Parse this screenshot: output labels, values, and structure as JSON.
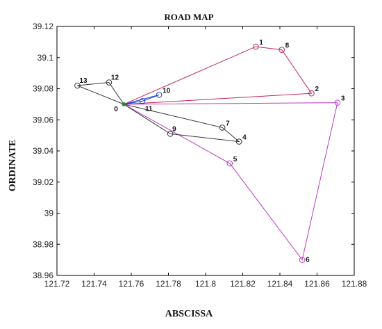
{
  "chart_data": {
    "type": "line",
    "title": "ROAD MAP",
    "xlabel": "ABSCISSA",
    "ylabel": "ORDINATE",
    "xlim": [
      121.72,
      121.88
    ],
    "ylim": [
      38.96,
      39.12
    ],
    "xticks": [
      "121.72",
      "121.74",
      "121.76",
      "121.78",
      "121.8",
      "121.82",
      "121.84",
      "121.86",
      "121.88"
    ],
    "yticks": [
      "38.96",
      "38.98",
      "39",
      "39.02",
      "39.04",
      "39.06",
      "39.08",
      "39.1",
      "39.12"
    ],
    "grid": false,
    "points": [
      {
        "label": "0",
        "x": 121.756,
        "y": 39.07
      },
      {
        "label": "1",
        "x": 121.827,
        "y": 39.107
      },
      {
        "label": "8",
        "x": 121.841,
        "y": 39.105
      },
      {
        "label": "2",
        "x": 121.857,
        "y": 39.077
      },
      {
        "label": "3",
        "x": 121.871,
        "y": 39.071
      },
      {
        "label": "6",
        "x": 121.852,
        "y": 38.97
      },
      {
        "label": "5",
        "x": 121.813,
        "y": 39.032
      },
      {
        "label": "7",
        "x": 121.809,
        "y": 39.055
      },
      {
        "label": "4",
        "x": 121.818,
        "y": 39.046
      },
      {
        "label": "9",
        "x": 121.781,
        "y": 39.051
      },
      {
        "label": "10",
        "x": 121.775,
        "y": 39.076
      },
      {
        "label": "11",
        "x": 121.766,
        "y": 39.072
      },
      {
        "label": "12",
        "x": 121.748,
        "y": 39.084
      },
      {
        "label": "13",
        "x": 121.731,
        "y": 39.082
      }
    ],
    "routes": [
      {
        "color": "#c0245a",
        "path": [
          "0",
          "1",
          "8",
          "2",
          "0"
        ]
      },
      {
        "color": "#b93cc6",
        "path": [
          "0",
          "3",
          "6",
          "5",
          "0"
        ]
      },
      {
        "color": "#333333",
        "path": [
          "0",
          "7",
          "4",
          "9",
          "0"
        ]
      },
      {
        "color": "#333333",
        "path": [
          "0",
          "13",
          "12",
          "0"
        ]
      },
      {
        "color": "#1a3fd4",
        "path": [
          "0",
          "11",
          "10",
          "0"
        ]
      }
    ],
    "marker_colors": {
      "1": "#c0245a",
      "8": "#c0245a",
      "2": "#c0245a",
      "3": "#b93cc6",
      "6": "#b93cc6",
      "5": "#b93cc6",
      "7": "#333333",
      "4": "#333333",
      "9": "#333333",
      "13": "#333333",
      "12": "#333333",
      "10": "#1a3fd4",
      "11": "#1a3fd4",
      "0": "#2e8b2e"
    }
  }
}
